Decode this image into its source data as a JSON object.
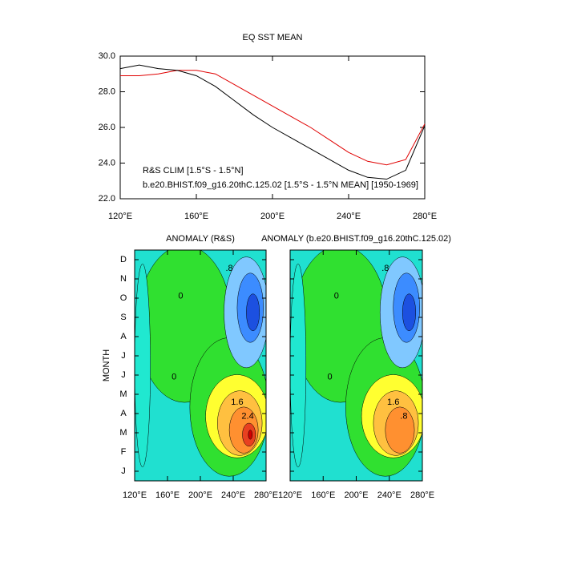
{
  "chart_data": [
    {
      "type": "line",
      "title": "EQ SST MEAN",
      "x": [
        120,
        130,
        140,
        150,
        160,
        170,
        180,
        190,
        200,
        210,
        220,
        230,
        240,
        250,
        260,
        270,
        280
      ],
      "xlim": [
        120,
        280
      ],
      "xticks": [
        {
          "value": 120,
          "label": "120°E"
        },
        {
          "value": 160,
          "label": "160°E"
        },
        {
          "value": 200,
          "label": "200°E"
        },
        {
          "value": 240,
          "label": "240°E"
        },
        {
          "value": 280,
          "label": "280°E"
        }
      ],
      "ylim": [
        22,
        30
      ],
      "yticks": [
        {
          "value": 22,
          "label": "22.0"
        },
        {
          "value": 24,
          "label": "24.0"
        },
        {
          "value": 26,
          "label": "26.0"
        },
        {
          "value": 28,
          "label": "28.0"
        },
        {
          "value": 30,
          "label": "30.0"
        }
      ],
      "series": [
        {
          "name": "R&S CLIM [1.5°S - 1.5°N]",
          "color": "#e00000",
          "values": [
            28.9,
            28.9,
            29.0,
            29.2,
            29.2,
            29.0,
            28.4,
            27.8,
            27.2,
            26.6,
            26.0,
            25.3,
            24.6,
            24.1,
            23.9,
            24.2,
            26.2
          ]
        },
        {
          "name": "b.e20.BHIST.f09_g16.20thC.125.02 [1.5°S - 1.5°N MEAN] [1950-1969]",
          "color": "#000000",
          "values": [
            29.3,
            29.5,
            29.3,
            29.2,
            28.9,
            28.3,
            27.5,
            26.7,
            26.0,
            25.4,
            24.8,
            24.2,
            23.6,
            23.2,
            23.1,
            23.6,
            26.1
          ]
        }
      ]
    },
    {
      "type": "contour",
      "title": "ANOMALY (R&S)",
      "ylabel": "MONTH",
      "categories": [
        "J",
        "F",
        "M",
        "A",
        "M",
        "J",
        "J",
        "A",
        "S",
        "O",
        "N",
        "D"
      ],
      "xlim": [
        120,
        280
      ],
      "xticks": [
        {
          "value": 120,
          "label": "120°E"
        },
        {
          "value": 160,
          "label": "160°E"
        },
        {
          "value": 200,
          "label": "200°E"
        },
        {
          "value": 240,
          "label": "240°E"
        },
        {
          "value": 280,
          "label": "280°E"
        }
      ],
      "contour_labels": [
        "0",
        ".8",
        "1.6",
        "2.4",
        "0"
      ]
    },
    {
      "type": "contour",
      "title": "ANOMALY (b.e20.BHIST.f09_g16.20thC.125.02)",
      "xlim": [
        120,
        280
      ],
      "xticks": [
        {
          "value": 120,
          "label": "120°E"
        },
        {
          "value": 160,
          "label": "160°E"
        },
        {
          "value": 200,
          "label": "200°E"
        },
        {
          "value": 240,
          "label": "240°E"
        },
        {
          "value": 280,
          "label": "280°E"
        }
      ],
      "contour_labels": [
        "0",
        ".8",
        "1.6",
        ".8",
        "0"
      ]
    }
  ]
}
